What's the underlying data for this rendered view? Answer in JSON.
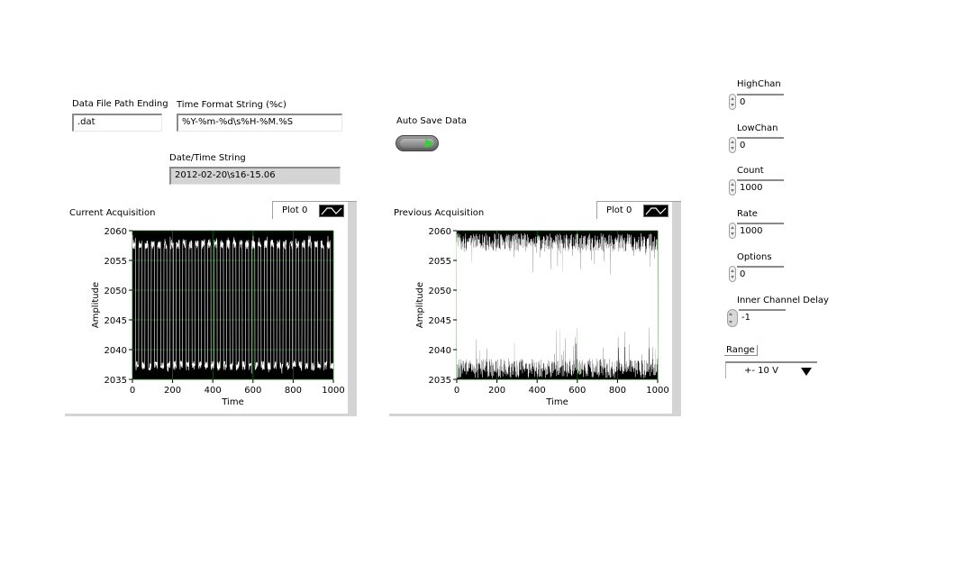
{
  "inputs": {
    "data_file_path_ending": {
      "label": "Data File Path Ending",
      "value": ".dat"
    },
    "time_format_string": {
      "label": "Time Format String (%c)",
      "value": "%Y-%m-%d\\s%H-%M.%S"
    },
    "date_time_string": {
      "label": "Date/Time String",
      "value": "2012-02-20\\s16-15.06"
    },
    "auto_save_data": {
      "label": "Auto Save Data"
    }
  },
  "graphs": [
    {
      "title": "Current Acquisition",
      "legend": "Plot 0",
      "xlabel": "Time",
      "ylabel": "Amplitude",
      "x_ticks": [
        "0",
        "200",
        "400",
        "600",
        "800",
        "1000"
      ],
      "y_ticks": [
        "2060",
        "2055",
        "2050",
        "2045",
        "2040",
        "2035"
      ]
    },
    {
      "title": "Previous Acquisition",
      "legend": "Plot 0",
      "xlabel": "Time",
      "ylabel": "Amplitude",
      "x_ticks": [
        "0",
        "200",
        "400",
        "600",
        "800",
        "1000"
      ],
      "y_ticks": [
        "2060",
        "2055",
        "2050",
        "2045",
        "2040",
        "2035"
      ]
    }
  ],
  "chart_data": [
    {
      "type": "line",
      "title": "Current Acquisition",
      "xlabel": "Time",
      "ylabel": "Amplitude",
      "xlim": [
        0,
        1000
      ],
      "ylim": [
        2035,
        2060
      ],
      "grid": true,
      "legend": "top-right",
      "series": [
        {
          "name": "Plot 0",
          "pattern": "square-wave toggling between ~2036 and ~2059",
          "low": 2036.5,
          "high": 2058.5,
          "transitions": 64
        }
      ]
    },
    {
      "type": "line",
      "title": "Previous Acquisition",
      "xlabel": "Time",
      "ylabel": "Amplitude",
      "xlim": [
        0,
        1000
      ],
      "ylim": [
        2035,
        2060
      ],
      "grid": true,
      "legend": "top-right",
      "series": [
        {
          "name": "Plot 0",
          "pattern": "noise split into two bands with sparse spikes",
          "low_band": [
            2035.2,
            2038.5
          ],
          "high_band": [
            2056.5,
            2059.6
          ]
        }
      ]
    }
  ],
  "controls": {
    "high_chan": {
      "label": "HighChan",
      "value": "0"
    },
    "low_chan": {
      "label": "LowChan",
      "value": "0"
    },
    "count": {
      "label": "Count",
      "value": "1000"
    },
    "rate": {
      "label": "Rate",
      "value": "1000"
    },
    "options": {
      "label": "Options",
      "value": "0"
    },
    "inner_channel_delay": {
      "label": "Inner Channel Delay",
      "value": "-1"
    },
    "range": {
      "label": "Range",
      "value": "+- 10 V"
    }
  },
  "colors": {
    "plot_bg": "#000000",
    "grid": "#0a6b0a",
    "trace": "#ffffff",
    "led_on": "#34d334"
  }
}
